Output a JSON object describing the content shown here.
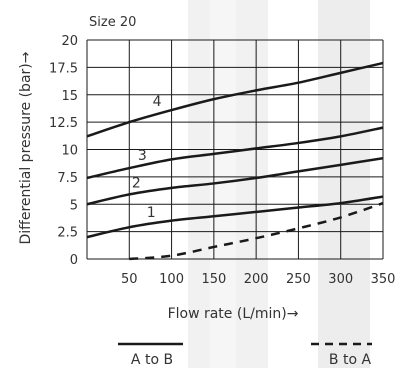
{
  "chart_data": {
    "type": "line",
    "title": "Size 20",
    "xlabel": "Flow rate (L/min)→",
    "ylabel": "Differential pressure (bar)→",
    "xlim": [
      0,
      350
    ],
    "ylim": [
      0,
      20
    ],
    "x_ticks": [
      "50",
      "100",
      "150",
      "200",
      "250",
      "300",
      "350"
    ],
    "y_ticks": [
      "0",
      "2.5",
      "5",
      "7.5",
      "10",
      "12.5",
      "15",
      "17.5",
      "20"
    ],
    "grid": true,
    "legend_position": "bottom",
    "legend": [
      {
        "label": "A to B",
        "style": "solid"
      },
      {
        "label": "B to A",
        "style": "dashed"
      }
    ],
    "series": [
      {
        "name": "4",
        "group": "A to B",
        "x": [
          0,
          50,
          100,
          150,
          200,
          250,
          300,
          350
        ],
        "y": [
          11.2,
          12.5,
          13.6,
          14.6,
          15.4,
          16.1,
          17.0,
          17.9
        ]
      },
      {
        "name": "3",
        "group": "A to B",
        "x": [
          0,
          50,
          100,
          150,
          200,
          250,
          300,
          350
        ],
        "y": [
          7.4,
          8.3,
          9.1,
          9.6,
          10.1,
          10.6,
          11.2,
          12.0
        ]
      },
      {
        "name": "2",
        "group": "A to B",
        "x": [
          0,
          50,
          100,
          150,
          200,
          250,
          300,
          350
        ],
        "y": [
          5.0,
          5.9,
          6.5,
          6.9,
          7.4,
          8.0,
          8.6,
          9.2
        ]
      },
      {
        "name": "1",
        "group": "A to B",
        "x": [
          0,
          50,
          100,
          150,
          200,
          250,
          300,
          350
        ],
        "y": [
          2.0,
          2.9,
          3.5,
          3.9,
          4.3,
          4.7,
          5.1,
          5.7
        ]
      },
      {
        "name": "",
        "group": "B to A",
        "x": [
          50,
          100,
          150,
          200,
          250,
          300,
          350
        ],
        "y": [
          0.0,
          0.3,
          1.1,
          1.9,
          2.8,
          3.8,
          5.1
        ]
      }
    ],
    "colors": {
      "line": "#1a1a1a",
      "grid": "#1a1a1a",
      "watermark": "#ececec"
    }
  }
}
